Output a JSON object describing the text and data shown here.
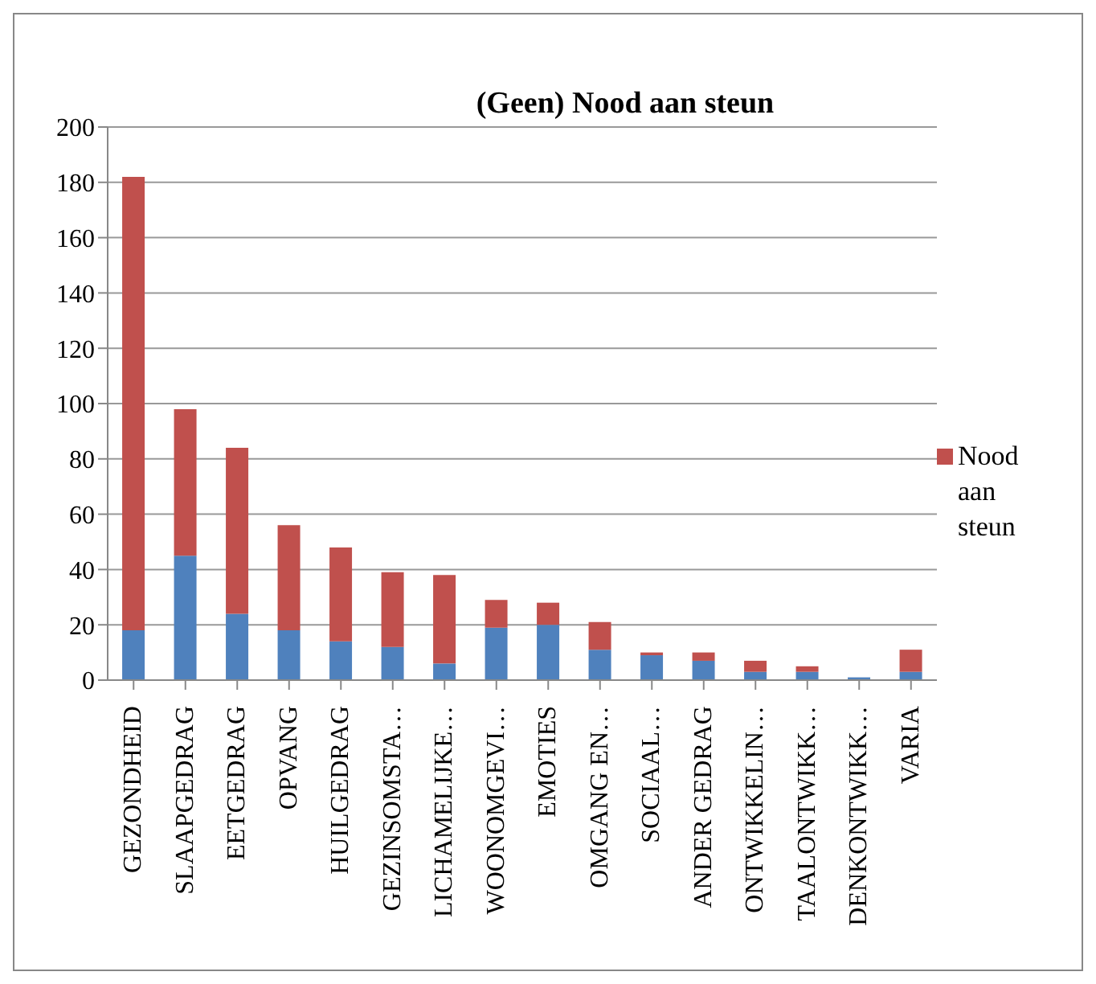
{
  "chart_data": {
    "type": "bar",
    "title": "(Geen) Nood aan steun",
    "stacked": true,
    "categories": [
      "GEZONDHEID",
      "SLAAPGEDRAG",
      "EETGEDRAG",
      "OPVANG",
      "HUILGEDRAG",
      "GEZINSOMSTA…",
      "LICHAMELIJKE…",
      "WOONOMGEVI…",
      "EMOTIES",
      "OMGANG EN…",
      "SOCIAAL…",
      "ANDER GEDRAG",
      "ONTWIKKELIN…",
      "TAALONTWIKK…",
      "DENKONTWIKK…",
      "VARIA"
    ],
    "series": [
      {
        "color": "#4f81bd",
        "values": [
          18,
          45,
          24,
          18,
          14,
          12,
          6,
          19,
          20,
          11,
          9,
          7,
          3,
          3,
          1,
          3
        ]
      },
      {
        "name": "Nood aan steun",
        "color": "#c0504d",
        "values": [
          164,
          53,
          60,
          38,
          34,
          27,
          32,
          10,
          8,
          10,
          1,
          3,
          4,
          2,
          0,
          8
        ]
      }
    ],
    "ylim": [
      0,
      200
    ],
    "yticks": [
      0,
      20,
      40,
      60,
      80,
      100,
      120,
      140,
      160,
      180,
      200
    ],
    "grid": "y",
    "legend": "right"
  }
}
